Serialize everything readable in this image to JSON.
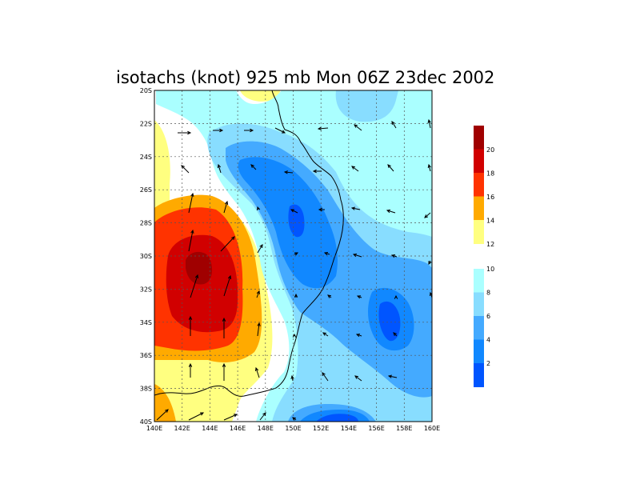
{
  "title": "isotachs (knot) 925 mb Mon 06Z 23dec 2002",
  "x_ticks": [
    "140E",
    "142E",
    "144E",
    "146E",
    "148E",
    "150E",
    "152E",
    "154E",
    "156E",
    "158E",
    "160E"
  ],
  "y_ticks": [
    "20S",
    "22S",
    "24S",
    "26S",
    "28S",
    "30S",
    "32S",
    "34S",
    "36S",
    "38S",
    "40S"
  ],
  "lon_range": [
    140,
    160
  ],
  "lat_range": [
    -20,
    -40
  ],
  "colorbar": {
    "upper": {
      "labels": [
        "20",
        "18",
        "16",
        "14",
        "12"
      ],
      "colors": [
        "#a00000",
        "#d10000",
        "#ff3300",
        "#ffaa00",
        "#ffff80"
      ]
    },
    "lower": {
      "labels": [
        "10",
        "8",
        "6",
        "4",
        "2"
      ],
      "colors": [
        "#aaffff",
        "#88ddff",
        "#44aaff",
        "#1188ff",
        "#0055ff"
      ]
    }
  },
  "colors": {
    "c2": "#0055ff",
    "c4": "#1188ff",
    "c6": "#44aaff",
    "c8": "#88ddff",
    "c10": "#aaffff",
    "c12": "#ffff80",
    "c14": "#ffaa00",
    "c16": "#ff3300",
    "c18": "#d10000",
    "c20": "#a00000"
  }
}
